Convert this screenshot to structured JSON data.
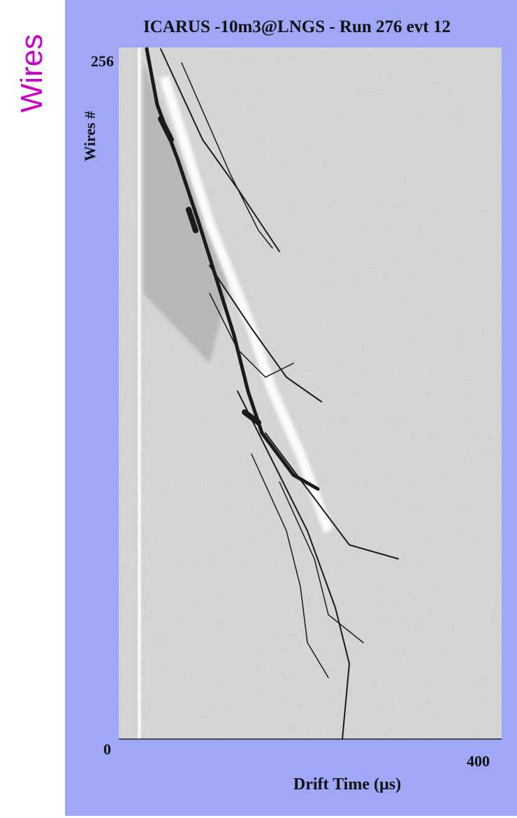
{
  "side_label": "Wires",
  "title": "ICARUS -10m3@LNGS - Run 276 evt 12",
  "y_axis": {
    "label": "Wires #",
    "ticks": [
      "256",
      "0"
    ]
  },
  "x_axis": {
    "label": "Drift Time (µs)",
    "ticks": [
      "400"
    ]
  }
}
